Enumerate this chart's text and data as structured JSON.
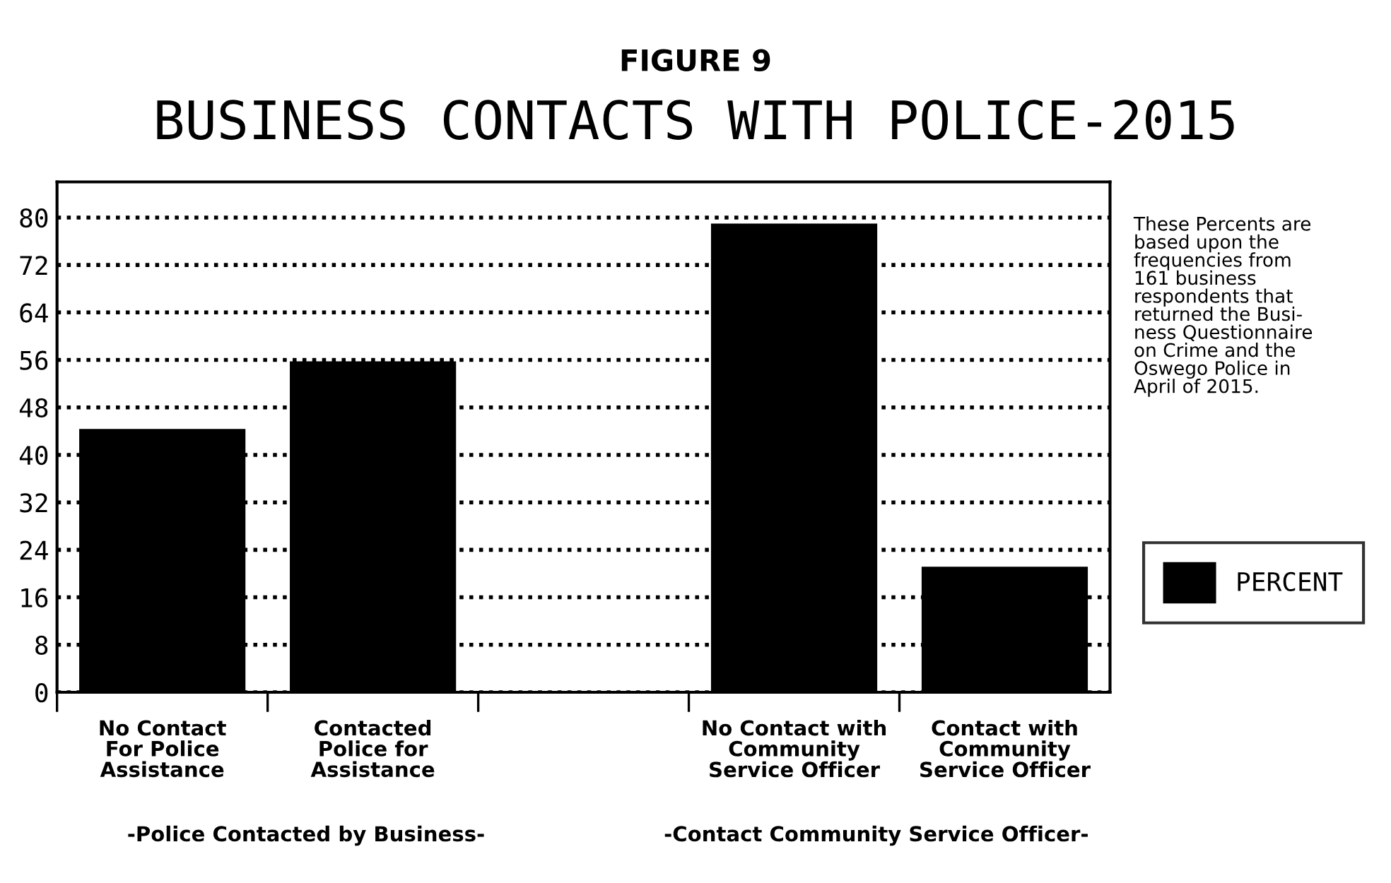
{
  "chart_data": {
    "type": "bar",
    "title": "BUSINESS CONTACTS WITH POLICE-2015",
    "categories": [
      "No Contact\nFor Police\nAssistance",
      "Contacted\nPolice for\nAssistance",
      null,
      "No Contact with\nCommunity\nService Officer",
      "Contact with\nCommunity\nService Officer"
    ],
    "series": [
      {
        "name": "PERCENT",
        "color": "#000000",
        "values": [
          44.2,
          55.6,
          null,
          78.8,
          21.0
        ]
      }
    ],
    "ylim": [
      0,
      86
    ],
    "yticks": [
      0,
      8,
      16,
      24,
      32,
      40,
      48,
      56,
      64,
      72,
      80
    ],
    "grid": "y",
    "legend": "right",
    "annotations": [
      "FIGURE 9",
      "These Percents are\nbased upon the\nfrequencies from\n161 business\nrespondents that\nreturned the Busi-\nness Questionnaire\non Crime and the\nOswego Police in\nApril of 2015.",
      "-Police Contacted by Business-",
      "-Contact Community Service Officer-"
    ]
  }
}
